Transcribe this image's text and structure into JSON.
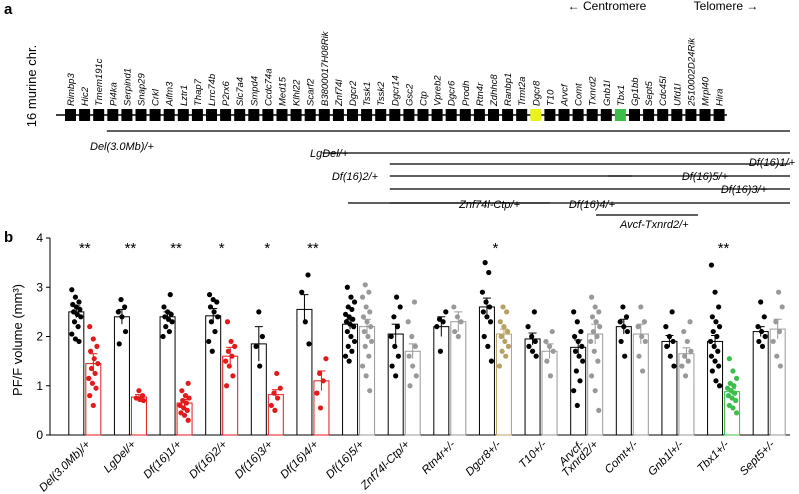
{
  "panel_a": {
    "label": "a",
    "chromosome_label": "16 murine chr.",
    "orientation": {
      "left": "Centromere",
      "right": "Telomere"
    },
    "genes": [
      "Rimbp3",
      "Hic2",
      "Tmem191c",
      "Pi4ka",
      "Serpind1",
      "Snap29",
      "Crkl",
      "Aifm3",
      "Lztr1",
      "Thap7",
      "Lrrc74b",
      "P2rx6",
      "Slc7a4",
      "Smpd4",
      "Ccdc74a",
      "Med15",
      "Klhl22",
      "Scarf2",
      "B3800017H08Rik",
      "Znf74l",
      "Dgcr2",
      "Tssk1",
      "Tssk2",
      "Dgcr14",
      "Gsc2",
      "Ctp",
      "Vpreb2",
      "Dgcr6",
      "Prodh",
      "Rtn4r",
      "Zdhhc8",
      "Ranbp1",
      "Trmt2a",
      "Dgcr8",
      "T10",
      "Arvcf",
      "Comt",
      "Txnrd2",
      "Gnb1l",
      "Tbx1",
      "Gp1bb",
      "Sept5",
      "Cdc45l",
      "Ufd1l",
      "2510002D24Rik",
      "Mrpl40",
      "Hira"
    ],
    "highlight": {
      "Dgcr8": "#e9f21a",
      "Tbx1": "#3bbf4a"
    },
    "deletions": [
      {
        "label": "Del(3.0Mb)/+",
        "start": "Pi4ka",
        "end": "Hira"
      },
      {
        "label": "LgDel/+",
        "start": "Dgcr2",
        "end": "Hira"
      },
      {
        "label": "Df(16)1/+",
        "start": "Dgcr14",
        "end": "Hira"
      },
      {
        "label": "Df(16)2/+",
        "start": "Dgcr14",
        "end": "Tbx1"
      },
      {
        "label": "Df(16)5/+",
        "start": "Tbx1",
        "end": "Hira"
      },
      {
        "label": "Df(16)3/+",
        "start": "Dgcr14",
        "end": "Hira"
      },
      {
        "label": "Znf74l-Ctp/+",
        "start": "Znf74l",
        "end": "Ctp"
      },
      {
        "label": "Df(16)4/+",
        "start": "Dgcr14",
        "end": "Hira"
      },
      {
        "label": "Avcf-Txnrd2/+",
        "start": "Arvcf",
        "end": "Txnrd2"
      }
    ]
  },
  "chart_data": {
    "panel_label": "b",
    "type": "bar",
    "ylabel": "PF/F volume (mm³)",
    "ylim": [
      0,
      4
    ],
    "yticks": [
      "0",
      "1",
      "2",
      "3",
      "4"
    ],
    "groups": [
      {
        "label": "Del(3.0Mb)/+",
        "wt": 2.5,
        "wt_err": 0.12,
        "mut": 1.45,
        "mut_err": 0.2,
        "mut_color": "#e31a1c",
        "sig": "**",
        "wt_points": [
          2.95,
          2.8,
          2.7,
          2.65,
          2.6,
          2.55,
          2.5,
          2.45,
          2.4,
          2.3,
          2.2,
          2.05,
          1.95,
          1.9
        ],
        "mut_points": [
          2.2,
          1.95,
          1.8,
          1.7,
          1.55,
          1.45,
          1.35,
          1.25,
          1.15,
          1.05,
          0.95,
          0.8,
          0.6
        ]
      },
      {
        "label": "LgDel/+",
        "wt": 2.4,
        "wt_err": 0.15,
        "mut": 0.77,
        "mut_err": 0.05,
        "mut_color": "#e31a1c",
        "sig": "**",
        "wt_points": [
          2.75,
          2.6,
          2.5,
          2.4,
          2.1,
          1.85
        ],
        "mut_points": [
          0.9,
          0.8,
          0.75,
          0.72,
          0.7
        ]
      },
      {
        "label": "Df(16)1/+",
        "wt": 2.4,
        "wt_err": 0.1,
        "mut": 0.65,
        "mut_err": 0.07,
        "mut_color": "#e31a1c",
        "sig": "**",
        "wt_points": [
          2.85,
          2.6,
          2.5,
          2.45,
          2.4,
          2.35,
          2.3,
          2.2,
          2.1,
          2.0
        ],
        "mut_points": [
          1.05,
          0.9,
          0.8,
          0.75,
          0.7,
          0.65,
          0.6,
          0.55,
          0.5,
          0.45,
          0.4,
          0.3
        ]
      },
      {
        "label": "Df(16)2/+",
        "wt": 2.42,
        "wt_err": 0.15,
        "mut": 1.6,
        "mut_err": 0.18,
        "mut_color": "#e31a1c",
        "sig": "*",
        "wt_points": [
          2.85,
          2.75,
          2.7,
          2.6,
          2.5,
          2.4,
          2.3,
          2.1,
          1.9,
          1.7
        ],
        "mut_points": [
          2.3,
          1.9,
          1.8,
          1.7,
          1.6,
          1.5,
          1.4,
          1.2,
          1.0
        ]
      },
      {
        "label": "Df(16)3/+",
        "wt": 1.85,
        "wt_err": 0.35,
        "mut": 0.82,
        "mut_err": 0.1,
        "mut_color": "#e31a1c",
        "sig": "*",
        "wt_points": [
          2.5,
          2.0,
          1.8,
          1.4
        ],
        "mut_points": [
          1.25,
          0.95,
          0.85,
          0.75,
          0.6,
          0.5
        ]
      },
      {
        "label": "Df(16)4/+",
        "wt": 2.55,
        "wt_err": 0.3,
        "mut": 1.1,
        "mut_err": 0.2,
        "mut_color": "#e31a1c",
        "sig": "**",
        "wt_points": [
          3.25,
          2.9,
          2.3,
          1.85
        ],
        "mut_points": [
          1.55,
          1.25,
          1.1,
          0.85,
          0.55
        ]
      },
      {
        "label": "Df(16)5/+",
        "wt": 2.25,
        "wt_err": 0.1,
        "mut": 2.2,
        "mut_err": 0.15,
        "mut_color": "#999999",
        "sig": "",
        "wt_points": [
          3.0,
          2.8,
          2.7,
          2.6,
          2.55,
          2.45,
          2.4,
          2.35,
          2.3,
          2.25,
          2.2,
          2.1,
          2.0,
          1.9,
          1.8,
          1.7,
          1.6,
          1.5
        ],
        "mut_points": [
          3.05,
          2.9,
          2.8,
          2.6,
          2.5,
          2.4,
          2.3,
          2.2,
          2.1,
          2.0,
          1.9,
          1.8,
          1.6,
          1.4,
          1.2,
          0.9
        ]
      },
      {
        "label": "Znf74l-Ctp/+",
        "wt": 2.05,
        "wt_err": 0.2,
        "mut": 1.7,
        "mut_err": 0.15,
        "mut_color": "#999999",
        "sig": "",
        "wt_points": [
          2.8,
          2.6,
          2.4,
          2.2,
          2.0,
          1.8,
          1.6,
          1.4,
          1.2
        ],
        "mut_points": [
          2.7,
          2.3,
          2.0,
          1.8,
          1.6,
          1.4,
          1.2,
          1.0
        ]
      },
      {
        "label": "Rtn4r+/-",
        "wt": 2.2,
        "wt_err": 0.2,
        "mut": 2.3,
        "mut_err": 0.2,
        "mut_color": "#999999",
        "sig": "",
        "wt_points": [
          2.5,
          2.35,
          2.3,
          2.2,
          1.7
        ],
        "mut_points": [
          2.6,
          2.4,
          2.3,
          2.1,
          2.0
        ]
      },
      {
        "label": "Dgcr8+/-",
        "wt": 2.6,
        "wt_err": 0.18,
        "mut": 2.05,
        "mut_err": 0.1,
        "mut_color": "#b8a062",
        "sig": "*",
        "wt_points": [
          3.5,
          3.3,
          2.9,
          2.7,
          2.6,
          2.5,
          2.4,
          2.3,
          2.0,
          1.8,
          1.5
        ],
        "mut_points": [
          2.6,
          2.5,
          2.3,
          2.2,
          2.1,
          2.0,
          1.9,
          1.8,
          1.7,
          1.6,
          1.4
        ]
      },
      {
        "label": "T10+/-",
        "wt": 1.95,
        "wt_err": 0.12,
        "mut": 1.7,
        "mut_err": 0.15,
        "mut_color": "#999999",
        "sig": "",
        "wt_points": [
          2.5,
          2.2,
          2.0,
          1.9,
          1.8,
          1.7,
          1.6
        ],
        "mut_points": [
          2.1,
          1.9,
          1.8,
          1.7,
          1.5,
          1.2
        ]
      },
      {
        "label": "Arvcf-Txnrd2/+",
        "wt": 1.78,
        "wt_err": 0.15,
        "mut": 2.05,
        "mut_err": 0.2,
        "mut_color": "#999999",
        "sig": "",
        "wt_points": [
          2.5,
          2.3,
          2.1,
          2.0,
          1.9,
          1.8,
          1.7,
          1.6,
          1.5,
          1.3,
          1.1,
          0.9,
          0.6
        ],
        "mut_points": [
          2.8,
          2.6,
          2.5,
          2.4,
          2.3,
          2.2,
          2.1,
          2.0,
          1.9,
          1.7,
          1.5,
          1.2,
          0.9,
          0.5
        ]
      },
      {
        "label": "Comt+/-",
        "wt": 2.2,
        "wt_err": 0.15,
        "mut": 2.05,
        "mut_err": 0.2,
        "mut_color": "#999999",
        "sig": "",
        "wt_points": [
          2.6,
          2.4,
          2.3,
          2.2,
          2.1,
          1.9,
          1.6
        ],
        "mut_points": [
          2.6,
          2.3,
          2.2,
          2.0,
          1.9,
          1.6,
          1.3
        ]
      },
      {
        "label": "Gnb1l+/-",
        "wt": 1.9,
        "wt_err": 0.12,
        "mut": 1.65,
        "mut_err": 0.12,
        "mut_color": "#999999",
        "sig": "",
        "wt_points": [
          2.5,
          2.2,
          2.0,
          1.9,
          1.8,
          1.6,
          1.4
        ],
        "mut_points": [
          2.3,
          2.1,
          1.9,
          1.7,
          1.6,
          1.5,
          1.4,
          1.2
        ]
      },
      {
        "label": "Tbx1+/-",
        "wt": 1.9,
        "wt_err": 0.12,
        "mut": 0.88,
        "mut_err": 0.06,
        "mut_color": "#3bbf4a",
        "sig": "**",
        "wt_points": [
          3.45,
          2.9,
          2.6,
          2.4,
          2.3,
          2.2,
          2.1,
          2.0,
          1.9,
          1.8,
          1.7,
          1.6,
          1.5,
          1.4,
          1.3,
          1.1,
          1.0
        ],
        "mut_points": [
          1.55,
          1.3,
          1.15,
          1.05,
          1.0,
          0.95,
          0.9,
          0.85,
          0.8,
          0.75,
          0.7,
          0.6,
          0.55,
          0.45
        ]
      },
      {
        "label": "Sept5+/-",
        "wt": 2.1,
        "wt_err": 0.1,
        "mut": 2.15,
        "mut_err": 0.2,
        "mut_color": "#999999",
        "sig": "",
        "wt_points": [
          2.7,
          2.4,
          2.2,
          2.1,
          2.0,
          1.9,
          1.8
        ],
        "mut_points": [
          2.9,
          2.6,
          2.3,
          2.1,
          1.9,
          1.6,
          1.4
        ]
      }
    ]
  }
}
